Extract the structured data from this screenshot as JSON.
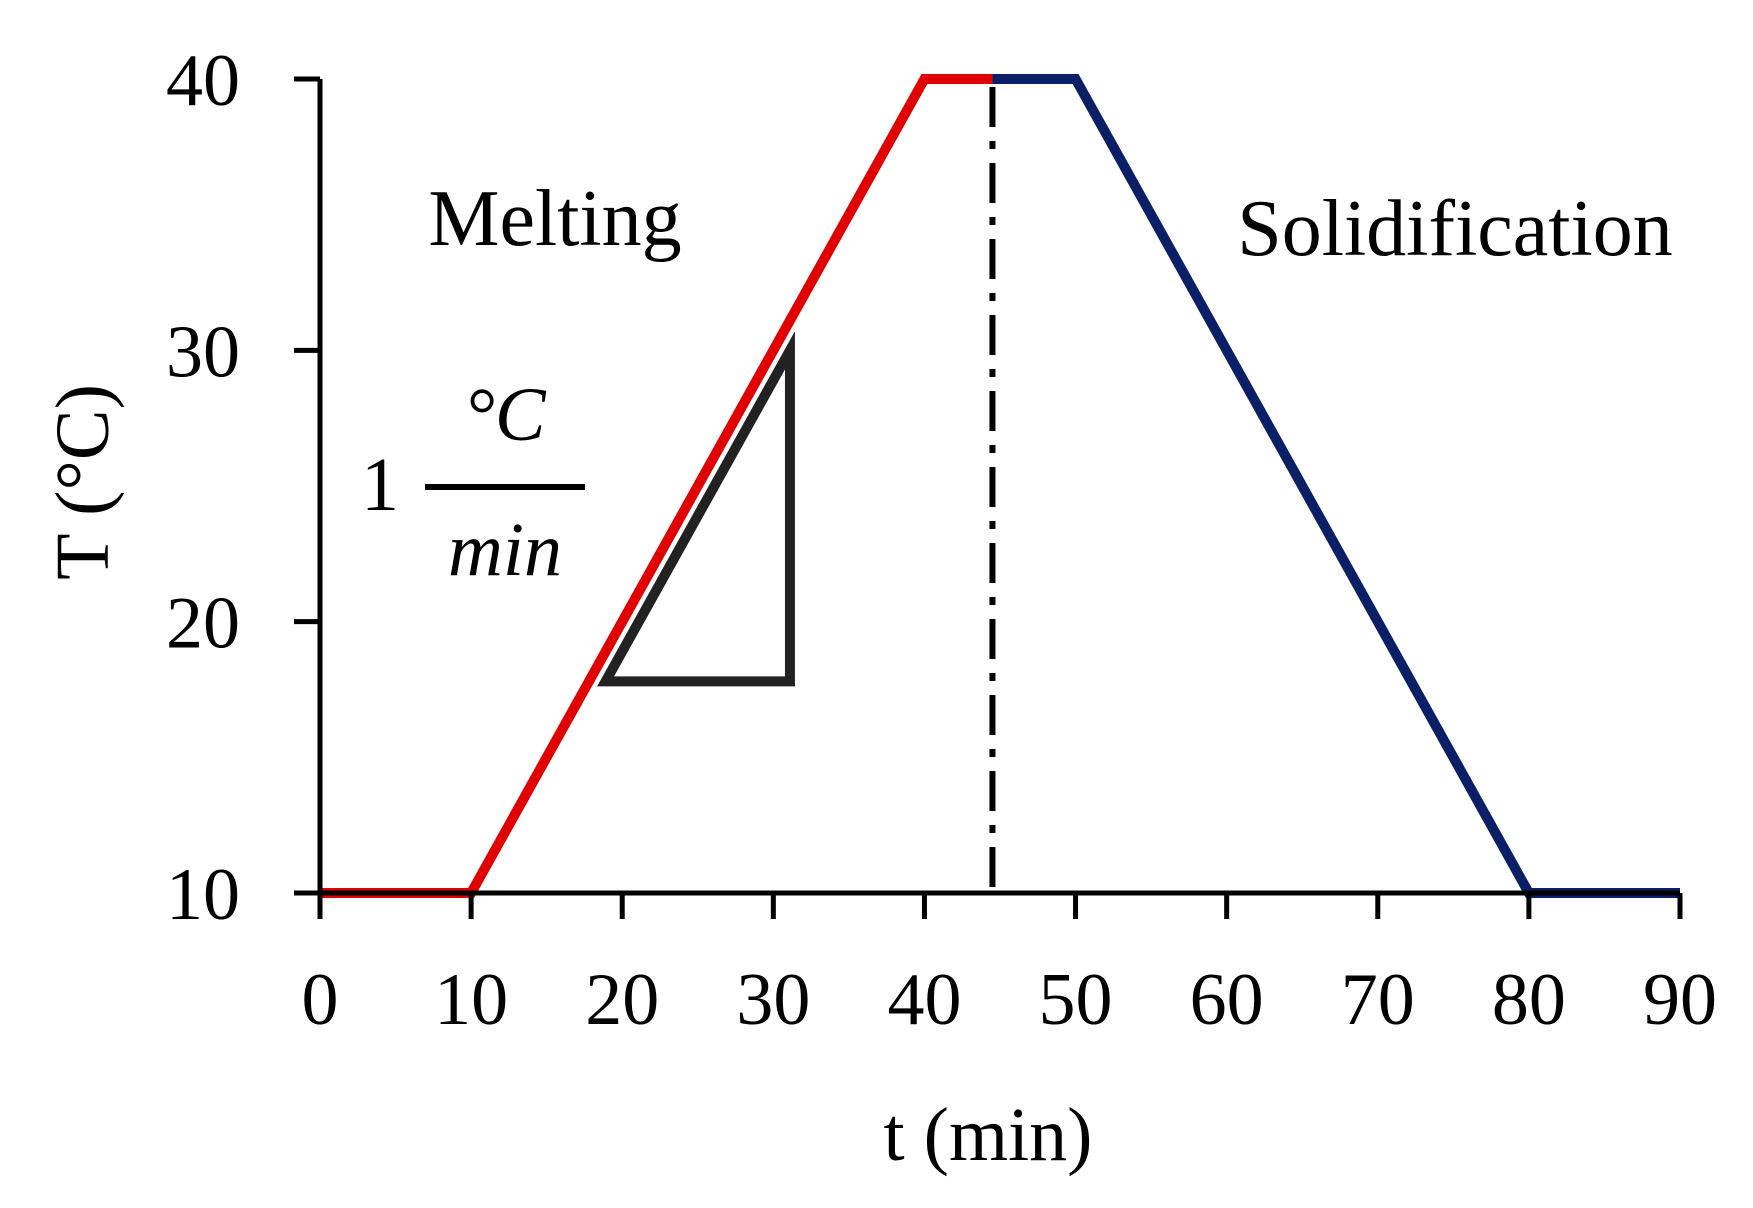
{
  "chart_data": {
    "type": "line",
    "xlabel": "t (min)",
    "ylabel": "T (°C)",
    "xlim": [
      0,
      90
    ],
    "ylim": [
      10,
      40
    ],
    "x_ticks": [
      0,
      10,
      20,
      30,
      40,
      50,
      60,
      70,
      80,
      90
    ],
    "y_ticks": [
      10,
      20,
      30,
      40
    ],
    "grid": false,
    "legend": "none",
    "series": [
      {
        "points": [
          [
            0,
            10
          ],
          [
            10,
            10
          ],
          [
            40,
            40
          ],
          [
            44.5,
            40
          ]
        ],
        "color": "#e00000"
      },
      {
        "points": [
          [
            44.5,
            40
          ],
          [
            50,
            40
          ],
          [
            80,
            10
          ],
          [
            90,
            10
          ]
        ],
        "color": "#0b1f66"
      }
    ],
    "annotations": {
      "melting_label": "Melting",
      "solidification_label": "Solidification",
      "divider_x": 44.5,
      "slope_triangle": [
        [
          18.9,
          17.8
        ],
        [
          31.1,
          30
        ],
        [
          31.1,
          17.8
        ]
      ],
      "slope_coefficient": "1",
      "slope_numerator": "°C",
      "slope_denominator": "min"
    }
  },
  "colors": {
    "melting": "#e00000",
    "solidification": "#0b1f66",
    "axis": "#000000",
    "triangle": "#222222"
  }
}
